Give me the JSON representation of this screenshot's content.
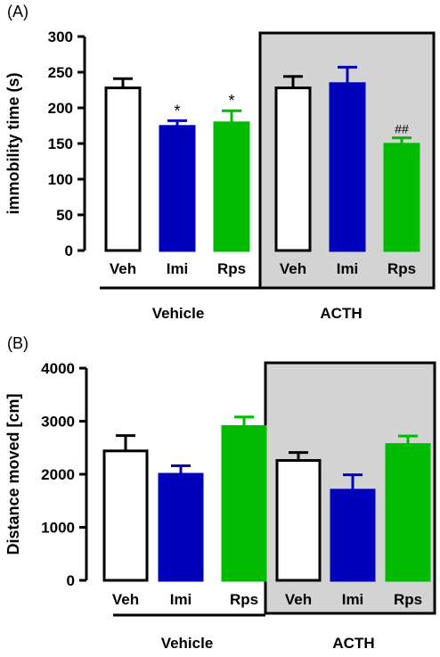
{
  "colors": {
    "veh": "#ffffff",
    "imi": "#0000bb",
    "rps": "#00bb00",
    "acth_box": "#d3d3d3",
    "ink": "#000000"
  },
  "chart_data": [
    {
      "type": "bar",
      "panel_label": "(A)",
      "ylabel": "immobility time (s)",
      "ylim": [
        0,
        300
      ],
      "yticks": [
        0,
        50,
        100,
        150,
        200,
        250,
        300
      ],
      "ytick_labels": [
        "0",
        "50",
        "100",
        "150",
        "200",
        "250",
        "300"
      ],
      "categories": [
        "Veh",
        "Imi",
        "Rps",
        "Veh",
        "Imi",
        "Rps"
      ],
      "groups": [
        "Vehicle",
        "ACTH"
      ],
      "values": [
        228,
        174,
        179,
        228,
        234,
        149
      ],
      "errors": [
        13,
        8,
        17,
        16,
        23,
        9
      ],
      "annotations": [
        "",
        "*",
        "*",
        "",
        "",
        "##"
      ],
      "shaded_group": "ACTH"
    },
    {
      "type": "bar",
      "panel_label": "(B)",
      "ylabel": "Distance moved [cm]",
      "ylim": [
        0,
        4000
      ],
      "yticks": [
        0,
        1000,
        2000,
        3000,
        4000
      ],
      "ytick_labels": [
        "0",
        "1000",
        "2000",
        "3000",
        "4000"
      ],
      "categories": [
        "Veh",
        "Imi",
        "Rps",
        "Veh",
        "Imi",
        "Rps"
      ],
      "groups": [
        "Vehicle",
        "ACTH"
      ],
      "values": [
        2440,
        2000,
        2900,
        2260,
        1700,
        2560
      ],
      "errors": [
        290,
        160,
        180,
        150,
        290,
        160
      ],
      "annotations": [
        "",
        "",
        "",
        "",
        "",
        ""
      ],
      "shaded_group": "ACTH"
    }
  ]
}
